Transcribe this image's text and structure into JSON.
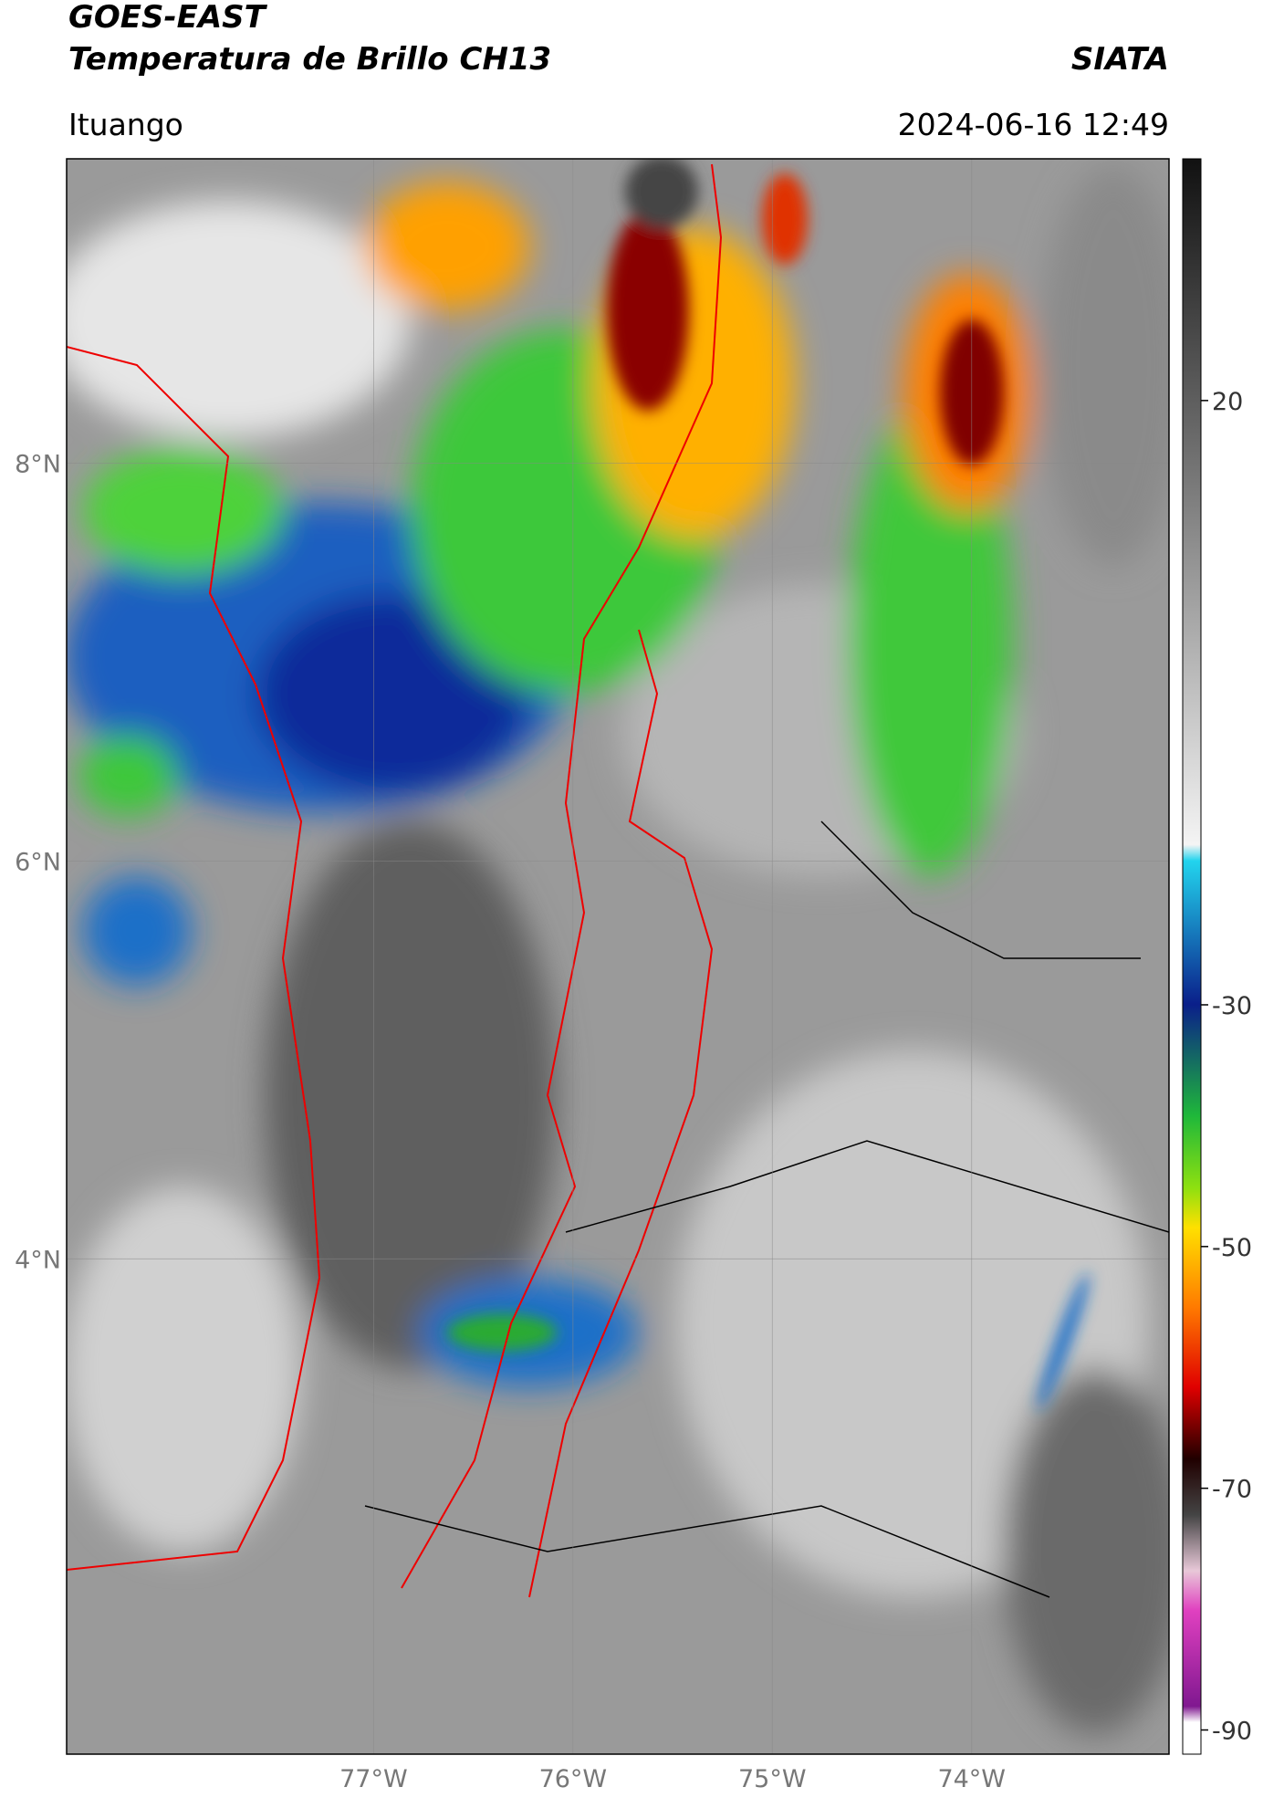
{
  "header": {
    "title": "GOES-EAST",
    "subtitle": "Temperatura de Brillo CH13",
    "source": "SIATA",
    "location": "Ituango",
    "datetime": "2024-06-16 12:49"
  },
  "map": {
    "xlim": [
      -78.54,
      -73.01
    ],
    "ylim": [
      1.51,
      9.53
    ],
    "xticks": [
      {
        "value": -77,
        "label": "77°W"
      },
      {
        "value": -76,
        "label": "76°W"
      },
      {
        "value": -75,
        "label": "75°W"
      },
      {
        "value": -74,
        "label": "74°W"
      }
    ],
    "yticks": [
      {
        "value": 4,
        "label": "4°N"
      },
      {
        "value": 6,
        "label": "6°N"
      },
      {
        "value": 8,
        "label": "8°N"
      }
    ],
    "grid": true
  },
  "colorbar": {
    "lim": [
      -92,
      40
    ],
    "ticks": [
      20,
      -30,
      -50,
      -70,
      -90
    ]
  }
}
